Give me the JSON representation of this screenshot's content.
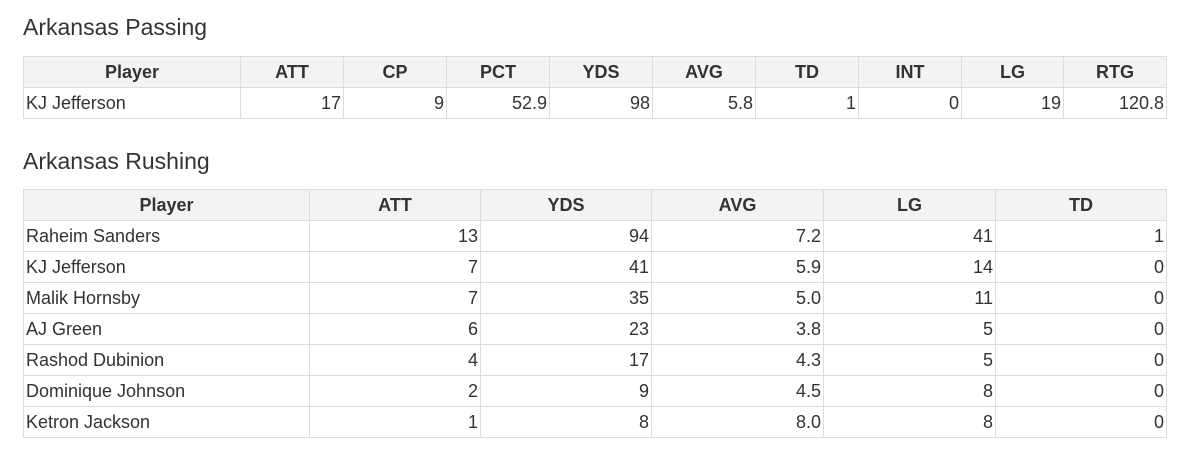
{
  "passing": {
    "title": "Arkansas Passing",
    "columns": [
      "Player",
      "ATT",
      "CP",
      "PCT",
      "YDS",
      "AVG",
      "TD",
      "INT",
      "LG",
      "RTG"
    ],
    "rows": [
      [
        "KJ Jefferson",
        "17",
        "9",
        "52.9",
        "98",
        "5.8",
        "1",
        "0",
        "19",
        "120.8"
      ]
    ]
  },
  "rushing": {
    "title": "Arkansas Rushing",
    "columns": [
      "Player",
      "ATT",
      "YDS",
      "AVG",
      "LG",
      "TD"
    ],
    "rows": [
      [
        "Raheim Sanders",
        "13",
        "94",
        "7.2",
        "41",
        "1"
      ],
      [
        "KJ Jefferson",
        "7",
        "41",
        "5.9",
        "14",
        "0"
      ],
      [
        "Malik Hornsby",
        "7",
        "35",
        "5.0",
        "11",
        "0"
      ],
      [
        "AJ Green",
        "6",
        "23",
        "3.8",
        "5",
        "0"
      ],
      [
        "Rashod Dubinion",
        "4",
        "17",
        "4.3",
        "5",
        "0"
      ],
      [
        "Dominique Johnson",
        "2",
        "9",
        "4.5",
        "8",
        "0"
      ],
      [
        "Ketron Jackson",
        "1",
        "8",
        "8.0",
        "8",
        "0"
      ]
    ]
  }
}
